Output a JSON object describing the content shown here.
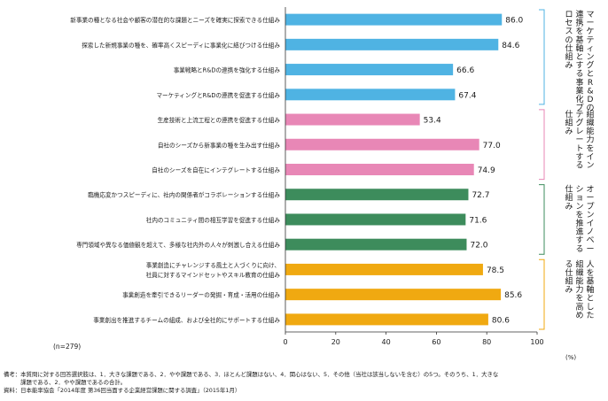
{
  "chart_data": {
    "type": "bar",
    "orientation": "horizontal",
    "categories": [
      "新事業の種となる社会や顧客の潜在的な課題とニーズを確実に探索できる仕組み",
      "探索した新規事業の種を、確率高くスピーディに事業化に結びつける仕組み",
      "事業戦略とR&Dの連携を強化する仕組み",
      "マーケティングとR&Dの連携を促進する仕組み",
      "生産技術と上流工程との連携を促進する仕組み",
      "自社のシーズから新事業の種を生み出す仕組み",
      "自社のシーズを自在にインテグレートする仕組み",
      "臨機応変かつスピーディに、社内の関係者がコラボレーションする仕組み",
      "社内のコミュニティ間の相互学習を促進する仕組み",
      "専門領域や異なる価値観を超えて、多様な社内外の人々が刺激し合える仕組み",
      "事業創造にチャレンジする風土と人づくりに向け、\n社員に対するマインドセットやスキル教育の仕組み",
      "事業創造を牽引できるリーダーの発掘・育成・活用の仕組み",
      "事業創出を推進するチームの組成、および全社的にサポートする仕組み"
    ],
    "values": [
      86.0,
      84.6,
      66.6,
      67.4,
      53.4,
      77.0,
      74.9,
      72.7,
      71.6,
      72.0,
      78.5,
      85.6,
      80.6
    ],
    "value_labels": [
      "86.0",
      "84.6",
      "66.6",
      "67.4",
      "53.4",
      "77.0",
      "74.9",
      "72.7",
      "71.6",
      "72.0",
      "78.5",
      "85.6",
      "80.6"
    ],
    "groups": [
      {
        "label": "マーケティングとR&Dの\n連携を基軸とする事業化プ\nロセスの仕組み",
        "start": 0,
        "end": 3,
        "color": "#4fb3e3"
      },
      {
        "label": "組織能力をイン\nテグレートする\n仕組み",
        "start": 4,
        "end": 6,
        "color": "#e887b6"
      },
      {
        "label": "オープンイノベー\nションを推進する\n仕組み",
        "start": 7,
        "end": 9,
        "color": "#3d8c5c"
      },
      {
        "label": "人を基軸とした\n組織能力を高め\nる仕組み",
        "start": 10,
        "end": 12,
        "color": "#f0a911"
      }
    ],
    "xlim": [
      0,
      100
    ],
    "xticks": [
      "0",
      "20",
      "40",
      "60",
      "80",
      "100"
    ],
    "unit": "(%)",
    "n_label": "(n=279)",
    "grid": false
  },
  "footnotes": [
    "備考：本質問に対する回答選択肢は、1．大きな課題である、2．やや課題である、3．ほとんど課題はない、4．関心はない、5．その他（当社は該当しないを含む）の5つ。そのうち、1．大きな",
    "　　　課題である、2．やや課題であるの合計。",
    "資料：日本能率協会「2014年度 第36回当面する企業経営課題に関する調査」（2015年1月）"
  ]
}
